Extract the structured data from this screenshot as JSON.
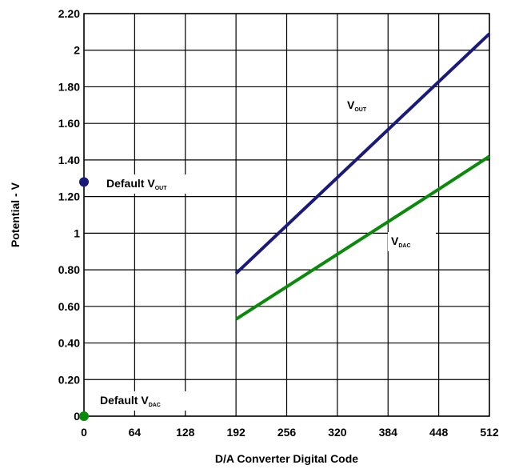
{
  "chart_data": {
    "type": "line",
    "title": "",
    "xlabel": "D/A Converter Digital Code",
    "ylabel": "Potential - V",
    "xlim": [
      0,
      512
    ],
    "ylim": [
      0,
      2.2
    ],
    "x_ticks": [
      0,
      64,
      128,
      192,
      256,
      320,
      384,
      448,
      512
    ],
    "x_tick_labels": [
      "0",
      "64",
      "128",
      "192",
      "256",
      "320",
      "384",
      "448",
      "512"
    ],
    "y_ticks": [
      0,
      0.2,
      0.4,
      0.6,
      0.8,
      1.0,
      1.2,
      1.4,
      1.6,
      1.8,
      2.0,
      2.2
    ],
    "y_tick_labels": [
      "0",
      "0.20",
      "0.40",
      "0.60",
      "0.80",
      "1",
      "1.20",
      "1.40",
      "1.60",
      "1.80",
      "2",
      "2.20"
    ],
    "grid": true,
    "series": [
      {
        "name_main": "V",
        "name_sub": "OUT",
        "color": "#1a1a7a",
        "x": [
          192,
          512
        ],
        "y": [
          0.78,
          2.09
        ]
      },
      {
        "name_main": "V",
        "name_sub": "DAC",
        "color": "#0a8a0a",
        "x": [
          192,
          448,
          512
        ],
        "y": [
          0.53,
          1.24,
          1.42
        ]
      }
    ],
    "points": [
      {
        "label_main": "Default V",
        "label_sub": "OUT",
        "x": 0,
        "y": 1.28,
        "color": "#1a1a7a"
      },
      {
        "label_main": "Default V",
        "label_sub": "DAC",
        "x": 0,
        "y": 0.0,
        "color": "#0a8a0a"
      }
    ]
  }
}
